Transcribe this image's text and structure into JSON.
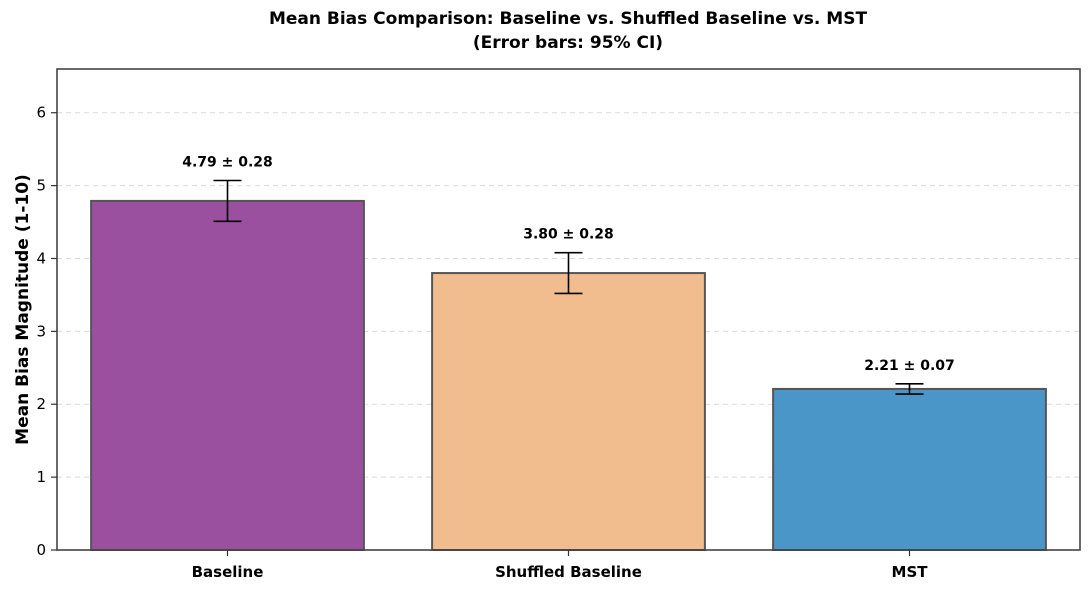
{
  "chart_data": {
    "type": "bar",
    "title_line1": "Mean Bias Comparison: Baseline vs. Shuffled Baseline vs. MST",
    "title_line2": "(Error bars: 95% CI)",
    "xlabel": "",
    "ylabel": "Mean Bias Magnitude (1-10)",
    "ylim": [
      0,
      6.6
    ],
    "yticks": [
      0,
      1,
      2,
      3,
      4,
      5,
      6
    ],
    "ytick_labels": [
      "0",
      "1",
      "2",
      "3",
      "4",
      "5",
      "6"
    ],
    "grid": true,
    "categories": [
      "Baseline",
      "Shuffled Baseline",
      "MST"
    ],
    "values": [
      4.79,
      3.8,
      2.21
    ],
    "errors": [
      0.28,
      0.28,
      0.07
    ],
    "data_labels": [
      "4.79 ± 0.28",
      "3.80 ± 0.28",
      "2.21 ± 0.07"
    ],
    "colors": [
      "#9b4f9f",
      "#f1bd8e",
      "#4b96c8"
    ],
    "edge_color": "#555555"
  }
}
